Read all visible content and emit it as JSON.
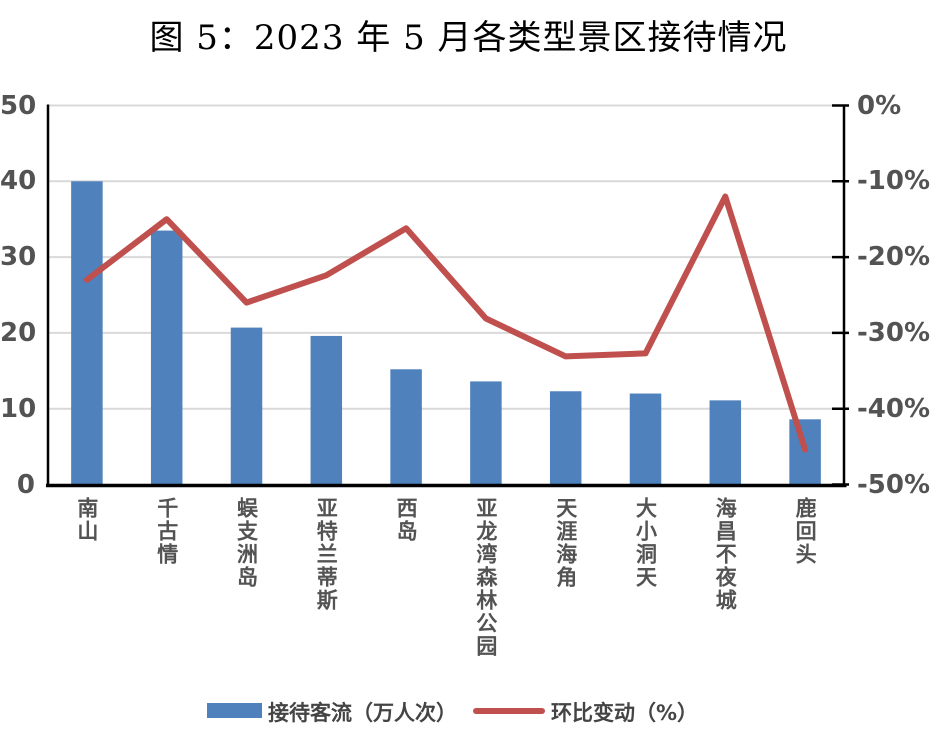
{
  "title": "图 5：2023 年 5 月各类型景区接待情况",
  "chart_data": {
    "type": "bar",
    "subtype": "bar+line combo, dual axis",
    "categories": [
      "南山",
      "千古情",
      "蜈支洲岛",
      "亚特兰蒂斯",
      "西岛",
      "亚龙湾森林公园",
      "天涯海角",
      "大小洞天",
      "海昌不夜城",
      "鹿回头"
    ],
    "series": [
      {
        "name": "接待客流（万人次）",
        "type": "bar",
        "axis": "left",
        "values": [
          40.0,
          33.5,
          20.7,
          19.6,
          15.2,
          13.6,
          12.3,
          12.0,
          11.1,
          8.6
        ]
      },
      {
        "name": "环比变动（%）",
        "type": "line",
        "axis": "right",
        "values": [
          -23,
          -15,
          -26,
          -22.4,
          -16.2,
          -28.1,
          -33.1,
          -32.7,
          -12,
          -45.4
        ]
      }
    ],
    "title": "图 5：2023 年 5 月各类型景区接待情况",
    "xlabel": "",
    "ylabel_left": "",
    "ylabel_right": "",
    "left_axis": {
      "min": 0,
      "max": 50,
      "ticks": [
        "50",
        "40",
        "30",
        "20",
        "10",
        "0"
      ]
    },
    "right_axis": {
      "min": -50,
      "max": 0,
      "ticks": [
        "0%",
        "-10%",
        "-20%",
        "-30%",
        "-40%",
        "-50%"
      ]
    },
    "grid": true,
    "legend_position": "bottom"
  },
  "legend": {
    "bar_label": "接待客流（万人次）",
    "line_label": "环比变动（%）"
  },
  "colors": {
    "bar": "#4F81BD",
    "line": "#C0504D",
    "grid": "#D9D9D9",
    "axis": "#000000",
    "tick_text": "#535353",
    "background": "#FFFFFF"
  }
}
